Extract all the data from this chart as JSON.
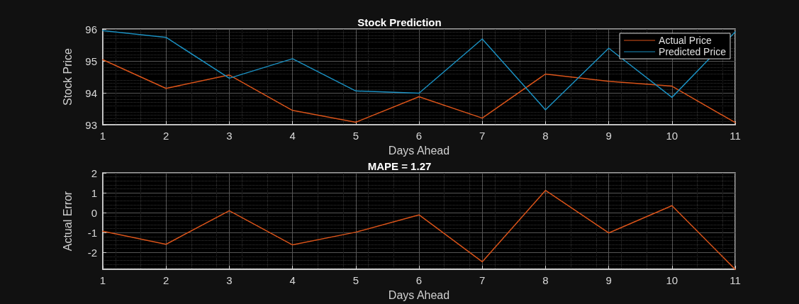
{
  "chart_data": [
    {
      "type": "line",
      "title": "Stock Prediction",
      "xlabel": "Days Ahead",
      "ylabel": "Stock Price",
      "x": [
        1,
        2,
        3,
        4,
        5,
        6,
        7,
        8,
        9,
        10,
        11
      ],
      "series": [
        {
          "name": "Actual Price",
          "color": "#d95319",
          "values": [
            95.04,
            94.14,
            94.56,
            93.45,
            93.08,
            93.88,
            93.21,
            94.59,
            94.36,
            94.21,
            93.07
          ]
        },
        {
          "name": "Predicted Price",
          "color": "#1a8fc0",
          "values": [
            95.95,
            95.74,
            94.46,
            95.07,
            94.06,
            93.99,
            95.69,
            93.47,
            95.4,
            93.86,
            95.91
          ]
        }
      ],
      "xlim": [
        1,
        11
      ],
      "xticks": [
        1,
        2,
        3,
        4,
        5,
        6,
        7,
        8,
        9,
        10,
        11
      ],
      "ylim": [
        93,
        96
      ],
      "yticks": [
        93,
        94,
        95,
        96
      ],
      "grid": true,
      "legend": "top right",
      "marker": "none",
      "line_style": "solid"
    },
    {
      "type": "line",
      "title": "MAPE = 1.27",
      "xlabel": "Days Ahead",
      "ylabel": "Actual Error",
      "x": [
        1,
        2,
        3,
        4,
        5,
        6,
        7,
        8,
        9,
        10,
        11
      ],
      "series": [
        {
          "color": "#d95319",
          "values": [
            -0.93,
            -1.59,
            0.1,
            -1.62,
            -0.98,
            -0.11,
            -2.47,
            1.12,
            -1.02,
            0.35,
            -2.85
          ]
        }
      ],
      "xlim": [
        1,
        11
      ],
      "xticks": [
        1,
        2,
        3,
        4,
        5,
        6,
        7,
        8,
        9,
        10,
        11
      ],
      "ylim": [
        -2.85,
        2
      ],
      "yticks": [
        -2,
        -1,
        0,
        1,
        2
      ],
      "grid": true,
      "legend": false,
      "marker": "none",
      "line_style": "solid"
    }
  ]
}
